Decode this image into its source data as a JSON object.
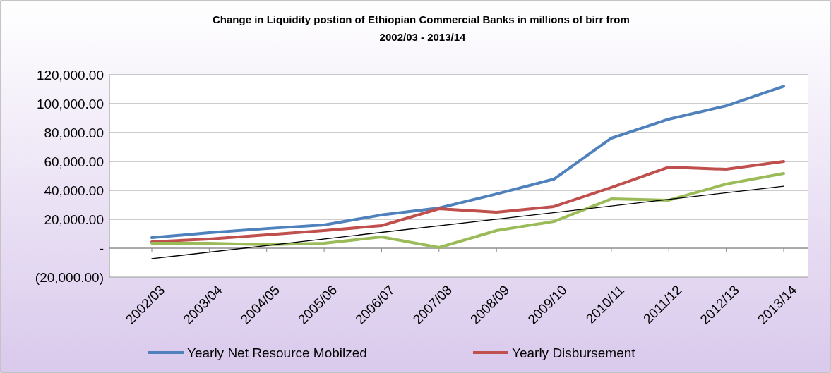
{
  "chart_data": {
    "type": "line",
    "title": "Change in Liquidity  postion of Ethiopian Commercial Banks in millions of birr from 2002/03 - 2013/14",
    "categories": [
      "2002/03",
      "2003/04",
      "2004/05",
      "2005/06",
      "2006/07",
      "2007/08",
      "2008/09",
      "2009/10",
      "2010/11",
      "2011/12",
      "2012/13",
      "2013/14"
    ],
    "series": [
      {
        "name": "Yearly Net Resource Mobilzed",
        "color": "#4f81bd",
        "values": [
          7300,
          10700,
          13600,
          16100,
          23000,
          27800,
          37500,
          47800,
          76100,
          89300,
          98500,
          112000
        ]
      },
      {
        "name": "Yearly Disbursement",
        "color": "#c0504d",
        "values": [
          4400,
          6300,
          9300,
          12200,
          15600,
          27300,
          24900,
          28800,
          42000,
          56100,
          54600,
          60000
        ]
      },
      {
        "color": "#9bbb59",
        "values": [
          3400,
          3400,
          2400,
          3400,
          7800,
          500,
          12200,
          18500,
          34100,
          33200,
          44400,
          51700
        ]
      },
      {
        "type": "line",
        "color": "#000000",
        "x": [
          "2002/03",
          "2013/14"
        ],
        "values": [
          -7300,
          42900
        ]
      }
    ],
    "ylim": [
      -20000,
      120000
    ],
    "yticks": [
      {
        "value": -20000,
        "label": "(20,000.00)"
      },
      {
        "value": 0,
        "label": "-"
      },
      {
        "value": 20000,
        "label": "20,000.00"
      },
      {
        "value": 40000,
        "label": "40,000.00"
      },
      {
        "value": 60000,
        "label": "60,000.00"
      },
      {
        "value": 80000,
        "label": "80,000.00"
      },
      {
        "value": 100000,
        "label": "100,000.00"
      },
      {
        "value": 120000,
        "label": "120,000.00"
      }
    ],
    "grid": "y",
    "legend": "bottom",
    "marker": "none",
    "line_style": "solid"
  }
}
